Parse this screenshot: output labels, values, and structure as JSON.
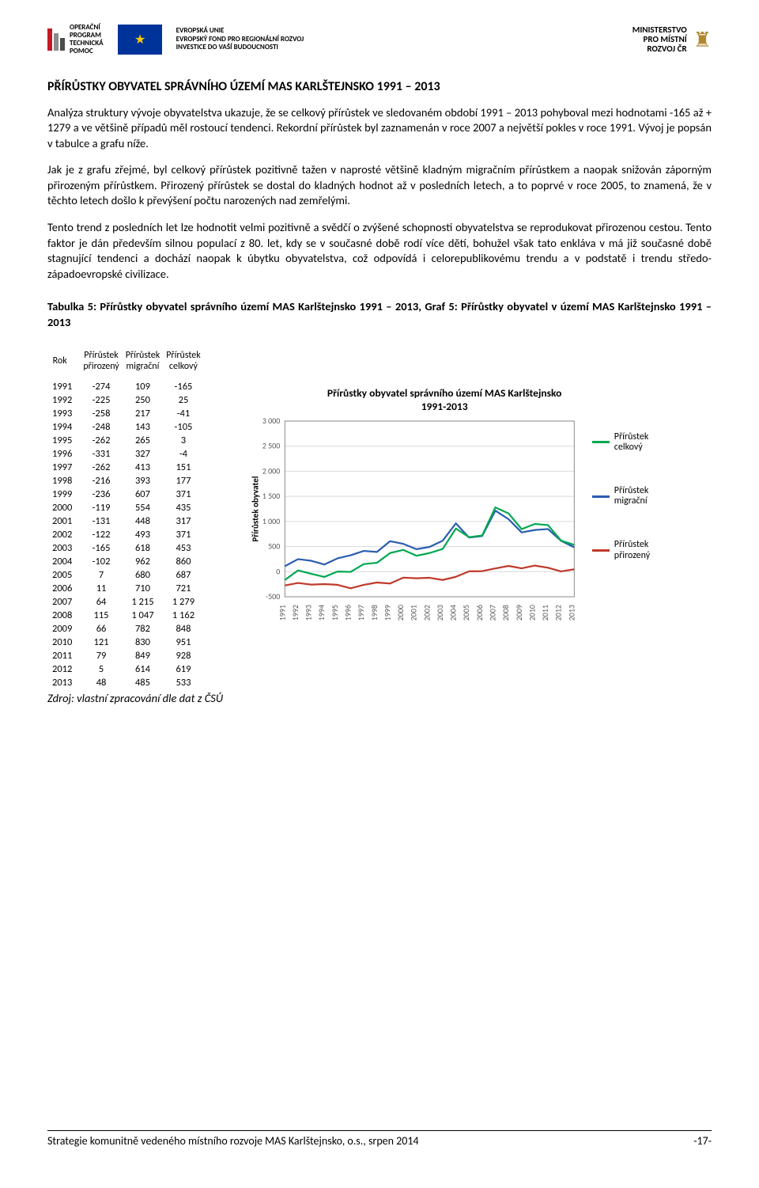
{
  "header": {
    "opt_lines": [
      "OPERAČNÍ",
      "PROGRAM",
      "TECHNICKÁ",
      "POMOC"
    ],
    "opt_bar_colors": [
      "#c41825",
      "#8a8d8e",
      "#4c4c4c"
    ],
    "eu_line1": "EVROPSKÁ UNIE",
    "eu_line2": "EVROPSKÝ FOND PRO REGIONÁLNÍ ROZVOJ",
    "eu_line3": "INVESTICE DO VAŠÍ BUDOUCNOSTI",
    "mmr_line1": "MINISTERSTVO",
    "mmr_line2": "PRO MÍSTNÍ",
    "mmr_line3": "ROZVOJ ČR"
  },
  "title": "PŘÍRŮSTKY OBYVATEL SPRÁVNÍHO ÚZEMÍ MAS KARLŠTEJNSKO 1991 – 2013",
  "paragraphs": {
    "p1": "Analýza struktury vývoje obyvatelstva ukazuje, že se celkový přírůstek ve sledovaném období 1991 – 2013 pohyboval mezi hodnotami -165 až + 1279 a ve většině případů měl rostoucí tendenci. Rekordní přírůstek byl zaznamenán v roce 2007 a největší pokles v roce 1991. Vývoj je popsán v tabulce a grafu níže.",
    "p2": "Jak je z grafu zřejmé, byl celkový přírůstek pozitivně tažen v naprosté většině kladným migračním přírůstkem a naopak snižován záporným přirozeným přírůstkem. Přirozený přírůstek se dostal do kladných hodnot až v posledních letech, a to poprvé v roce 2005, to znamená, že v těchto letech došlo k převýšení počtu narozených nad zemřelými.",
    "p3": "Tento trend z posledních let lze hodnotit velmi pozitivně a svědčí o zvýšené schopnosti obyvatelstva se reprodukovat přirozenou cestou. Tento faktor je dán především silnou populací z 80. let, kdy se v současné době rodí více dětí, bohužel však tato enkláva v má již současné době stagnující tendenci a dochází naopak k úbytku obyvatelstva, což odpovídá i celorepublikovému trendu a v podstatě i trendu středo-západoevropské civilizace."
  },
  "table_caption": "Tabulka 5: Přírůstky obyvatel správního území MAS Karlštejnsko 1991 – 2013, Graf 5: Přírůstky obyvatel v území MAS Karlštejnsko 1991 – 2013",
  "table": {
    "head_rok": "Rok",
    "head_prirozeny_l1": "Přírůstek",
    "head_prirozeny_l2": "přirozený",
    "head_migracni_l1": "Přírůstek",
    "head_migracni_l2": "migrační",
    "head_celkovy_l1": "Přírůstek",
    "head_celkovy_l2": "celkový",
    "rows": [
      {
        "rok": "1991",
        "p": "-274",
        "m": "109",
        "c": "-165"
      },
      {
        "rok": "1992",
        "p": "-225",
        "m": "250",
        "c": "25"
      },
      {
        "rok": "1993",
        "p": "-258",
        "m": "217",
        "c": "-41"
      },
      {
        "rok": "1994",
        "p": "-248",
        "m": "143",
        "c": "-105"
      },
      {
        "rok": "1995",
        "p": "-262",
        "m": "265",
        "c": "3"
      },
      {
        "rok": "1996",
        "p": "-331",
        "m": "327",
        "c": "-4"
      },
      {
        "rok": "1997",
        "p": "-262",
        "m": "413",
        "c": "151"
      },
      {
        "rok": "1998",
        "p": "-216",
        "m": "393",
        "c": "177"
      },
      {
        "rok": "1999",
        "p": "-236",
        "m": "607",
        "c": "371"
      },
      {
        "rok": "2000",
        "p": "-119",
        "m": "554",
        "c": "435"
      },
      {
        "rok": "2001",
        "p": "-131",
        "m": "448",
        "c": "317"
      },
      {
        "rok": "2002",
        "p": "-122",
        "m": "493",
        "c": "371"
      },
      {
        "rok": "2003",
        "p": "-165",
        "m": "618",
        "c": "453"
      },
      {
        "rok": "2004",
        "p": "-102",
        "m": "962",
        "c": "860"
      },
      {
        "rok": "2005",
        "p": "7",
        "m": "680",
        "c": "687"
      },
      {
        "rok": "2006",
        "p": "11",
        "m": "710",
        "c": "721"
      },
      {
        "rok": "2007",
        "p": "64",
        "m": "1 215",
        "c": "1 279"
      },
      {
        "rok": "2008",
        "p": "115",
        "m": "1 047",
        "c": "1 162"
      },
      {
        "rok": "2009",
        "p": "66",
        "m": "782",
        "c": "848"
      },
      {
        "rok": "2010",
        "p": "121",
        "m": "830",
        "c": "951"
      },
      {
        "rok": "2011",
        "p": "79",
        "m": "849",
        "c": "928"
      },
      {
        "rok": "2012",
        "p": "5",
        "m": "614",
        "c": "619"
      },
      {
        "rok": "2013",
        "p": "48",
        "m": "485",
        "c": "533"
      }
    ]
  },
  "source": "Zdroj: vlastní zpracování dle dat z ČSÚ",
  "chart": {
    "title_l1": "Přírůstky obyvatel správního území MAS Karlštejnsko",
    "title_l2": "1991-2013",
    "ylabel": "Přírůstek obyvatel",
    "years": [
      "1991",
      "1992",
      "1993",
      "1994",
      "1995",
      "1996",
      "1997",
      "1998",
      "1999",
      "2000",
      "2001",
      "2002",
      "2003",
      "2004",
      "2005",
      "2006",
      "2007",
      "2008",
      "2009",
      "2010",
      "2011",
      "2012",
      "2013"
    ],
    "series_celkovy": [
      -165,
      25,
      -41,
      -105,
      3,
      -4,
      151,
      177,
      371,
      435,
      317,
      371,
      453,
      860,
      687,
      721,
      1279,
      1162,
      848,
      951,
      928,
      619,
      533
    ],
    "series_migracni": [
      109,
      250,
      217,
      143,
      265,
      327,
      413,
      393,
      607,
      554,
      448,
      493,
      618,
      962,
      680,
      710,
      1215,
      1047,
      782,
      830,
      849,
      614,
      485
    ],
    "series_prirozeny": [
      -274,
      -225,
      -258,
      -248,
      -262,
      -331,
      -262,
      -216,
      -236,
      -119,
      -131,
      -122,
      -165,
      -102,
      7,
      11,
      64,
      115,
      66,
      121,
      79,
      5,
      48
    ],
    "color_celkovy": "#00a850",
    "color_migracni": "#2a5db0",
    "color_prirozeny": "#c0392b",
    "grid_color": "#d9d9d9",
    "axis_color": "#8a8a8a",
    "background": "#ffffff",
    "ymin": -500,
    "ymax": 3000,
    "ytick_step": 500,
    "line_width": 2.2,
    "axis_fontsize": 10,
    "legend": {
      "celkovy_l1": "Přírůstek",
      "celkovy_l2": "celkový",
      "migracni_l1": "Přírůstek",
      "migracni_l2": "migrační",
      "prirozeny_l1": "Přírůstek",
      "prirozeny_l2": "přirozený"
    }
  },
  "footer": {
    "left": "Strategie komunitně vedeného místního rozvoje MAS Karlštejnsko, o.s., srpen 2014",
    "right": "-17-"
  }
}
